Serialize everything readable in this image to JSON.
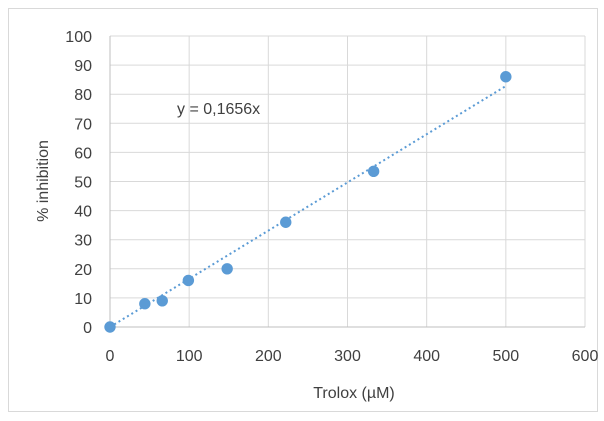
{
  "chart_data": {
    "type": "scatter",
    "title": "",
    "xlabel": "Trolox (µM)",
    "ylabel": "% inhibition",
    "xlim": [
      0,
      600
    ],
    "ylim": [
      0,
      100
    ],
    "x_ticks": [
      0,
      100,
      200,
      300,
      400,
      500,
      600
    ],
    "y_ticks": [
      0,
      10,
      20,
      30,
      40,
      50,
      60,
      70,
      80,
      90,
      100
    ],
    "grid": true,
    "series": [
      {
        "points": [
          {
            "x": 0,
            "y": 0
          },
          {
            "x": 44,
            "y": 8
          },
          {
            "x": 66,
            "y": 9
          },
          {
            "x": 99,
            "y": 16
          },
          {
            "x": 148,
            "y": 20
          },
          {
            "x": 222,
            "y": 36
          },
          {
            "x": 333,
            "y": 53.5
          },
          {
            "x": 500,
            "y": 86
          }
        ],
        "color": "#5b9bd5"
      }
    ],
    "trendline": {
      "type": "linear",
      "slope": 0.1656,
      "intercept": 0,
      "x_range": [
        0,
        500
      ],
      "style": "dotted",
      "color": "#5b9bd5",
      "label": "y = 0,1656x"
    }
  }
}
